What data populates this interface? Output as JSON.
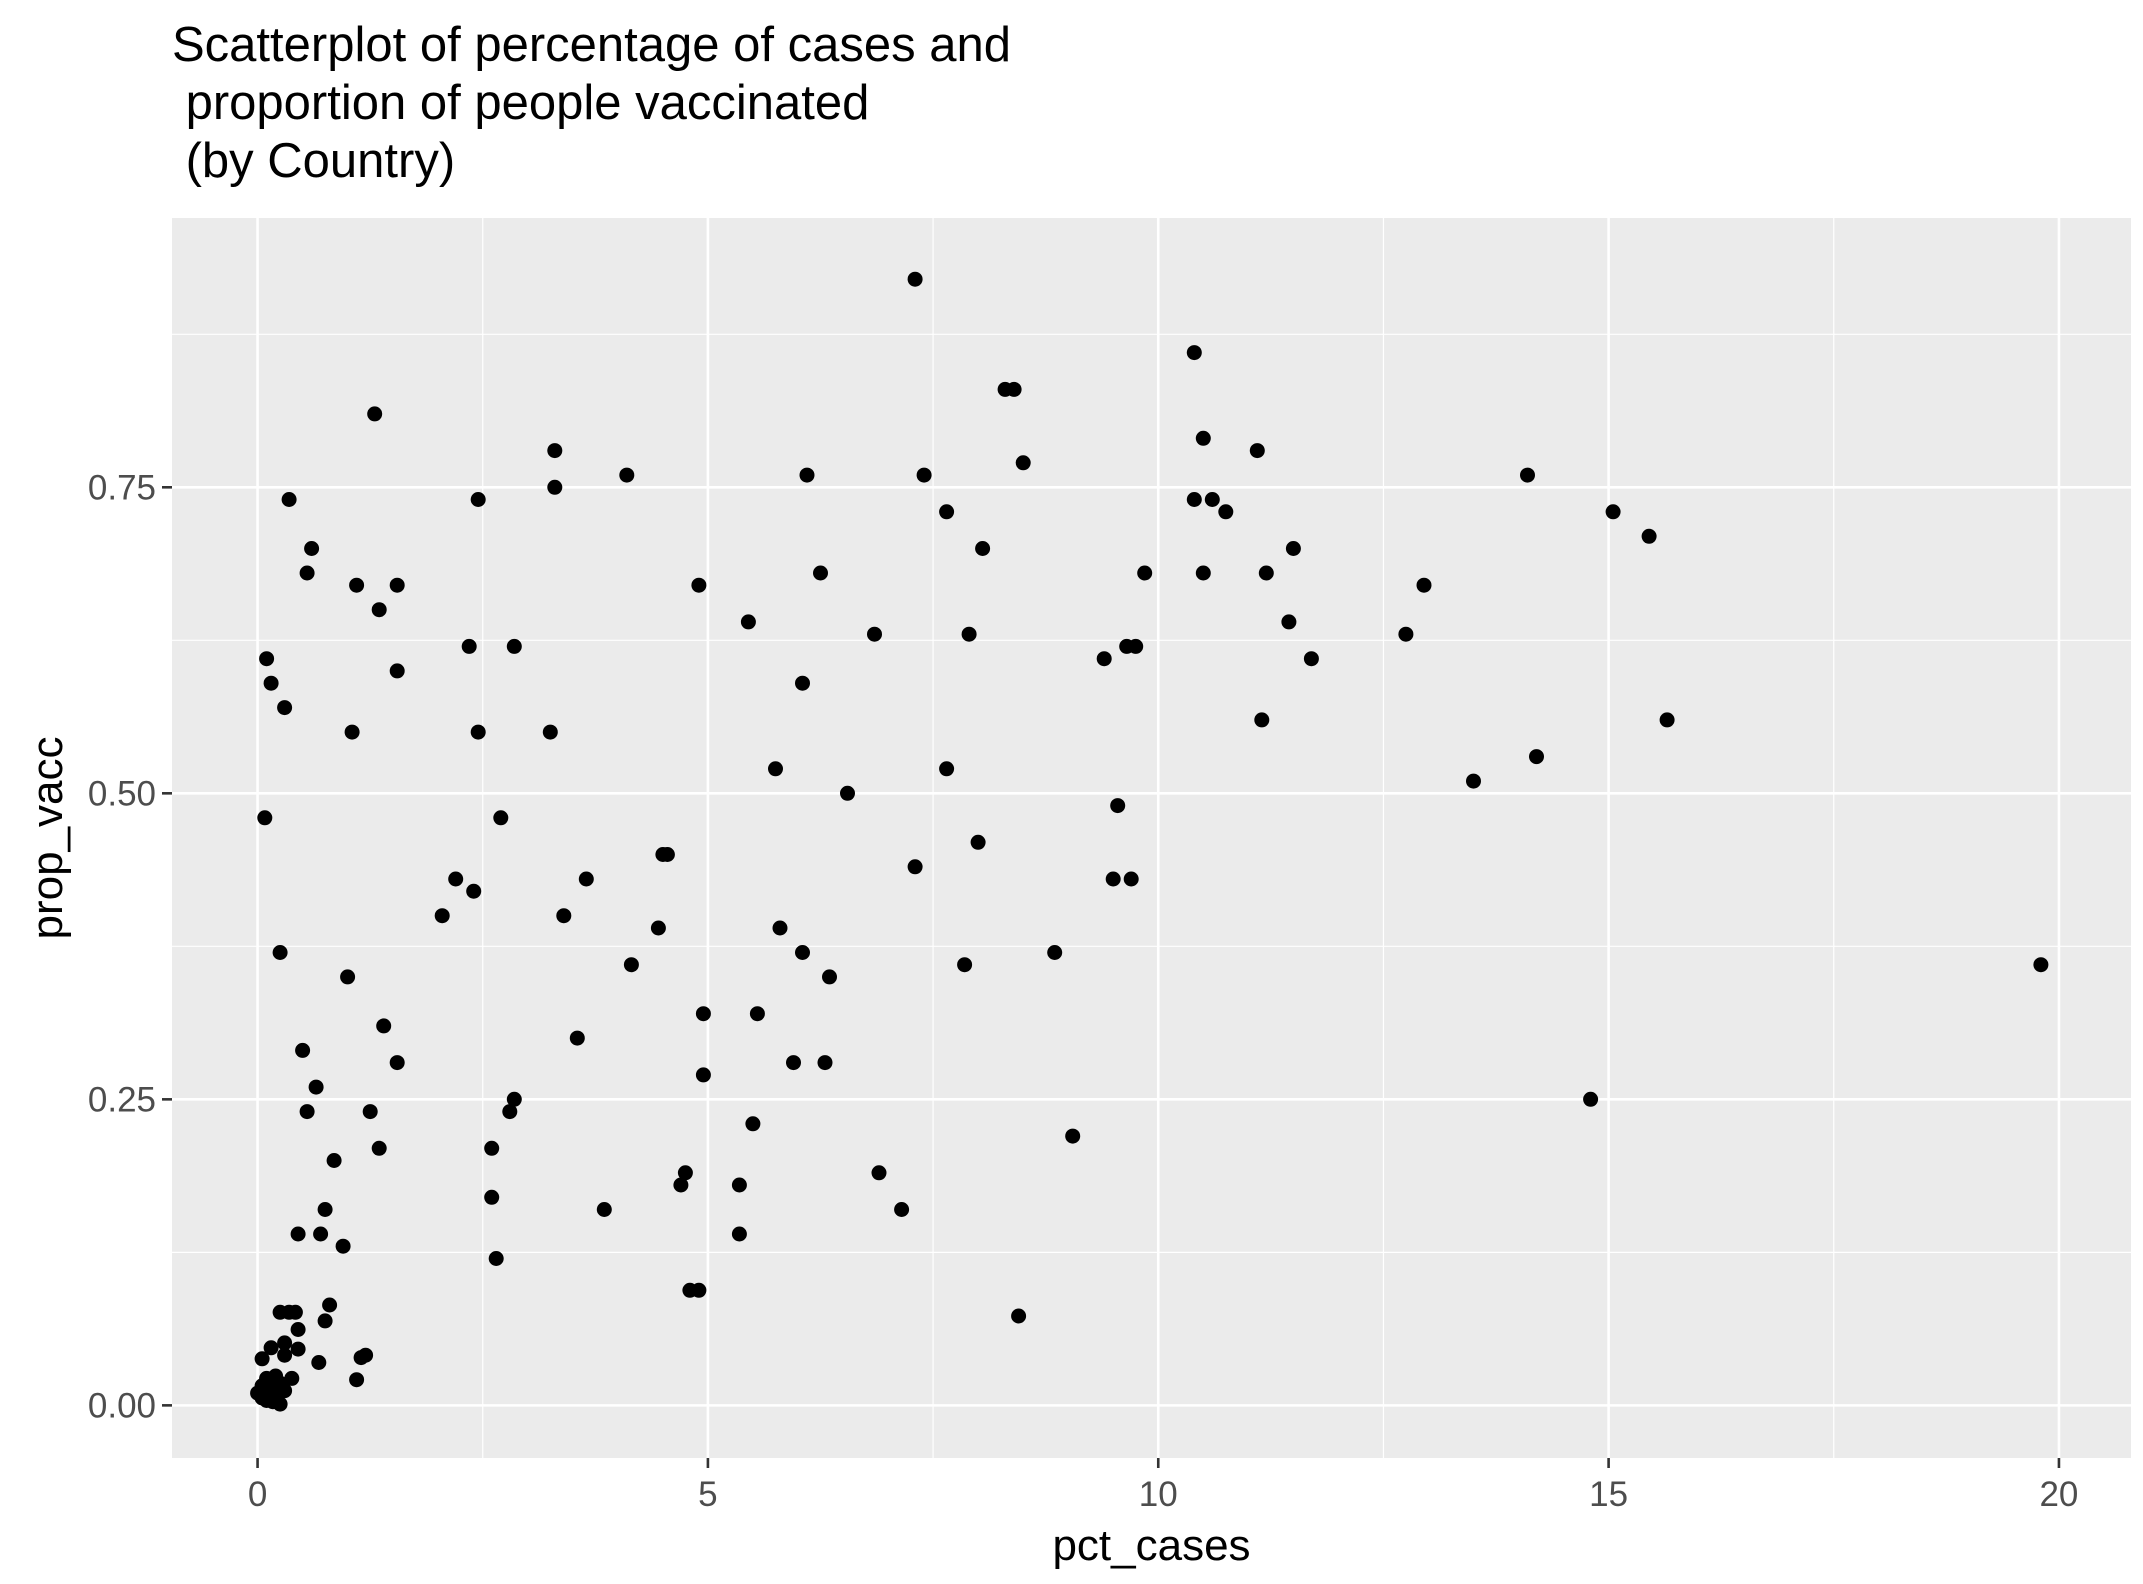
{
  "chart_data": {
    "type": "scatter",
    "title_lines": [
      "Scatterplot of percentage of cases and",
      " proportion of people vaccinated",
      " (by Country)"
    ],
    "xlabel": "pct_cases",
    "ylabel": "prop_vacc",
    "xlim": [
      -0.95,
      20.8
    ],
    "ylim": [
      -0.043,
      0.97
    ],
    "x_ticks": [
      0,
      5,
      10,
      15,
      20
    ],
    "x_tick_labels": [
      "0",
      "5",
      "10",
      "15",
      "20"
    ],
    "y_ticks": [
      0,
      0.25,
      0.5,
      0.75
    ],
    "y_tick_labels": [
      "0.00",
      "0.25",
      "0.50",
      "0.75"
    ],
    "grid": true,
    "panel_background": "#ebebeb",
    "grid_color": "#ffffff",
    "point_color": "#000000",
    "points": [
      [
        7.3,
        0.92
      ],
      [
        10.4,
        0.86
      ],
      [
        8.3,
        0.83
      ],
      [
        8.4,
        0.83
      ],
      [
        1.3,
        0.81
      ],
      [
        10.5,
        0.79
      ],
      [
        3.3,
        0.78
      ],
      [
        11.1,
        0.78
      ],
      [
        8.5,
        0.77
      ],
      [
        4.1,
        0.76
      ],
      [
        6.1,
        0.76
      ],
      [
        7.4,
        0.76
      ],
      [
        14.1,
        0.76
      ],
      [
        3.3,
        0.75
      ],
      [
        0.35,
        0.74
      ],
      [
        2.45,
        0.74
      ],
      [
        10.4,
        0.74
      ],
      [
        10.6,
        0.74
      ],
      [
        7.65,
        0.73
      ],
      [
        10.75,
        0.73
      ],
      [
        15.05,
        0.73
      ],
      [
        15.45,
        0.71
      ],
      [
        0.6,
        0.7
      ],
      [
        8.05,
        0.7
      ],
      [
        11.5,
        0.7
      ],
      [
        0.55,
        0.68
      ],
      [
        6.25,
        0.68
      ],
      [
        9.85,
        0.68
      ],
      [
        10.5,
        0.68
      ],
      [
        11.2,
        0.68
      ],
      [
        1.1,
        0.67
      ],
      [
        1.55,
        0.67
      ],
      [
        4.9,
        0.67
      ],
      [
        12.95,
        0.67
      ],
      [
        1.35,
        0.65
      ],
      [
        5.45,
        0.64
      ],
      [
        11.45,
        0.64
      ],
      [
        6.85,
        0.63
      ],
      [
        7.9,
        0.63
      ],
      [
        12.75,
        0.63
      ],
      [
        2.35,
        0.62
      ],
      [
        2.85,
        0.62
      ],
      [
        9.65,
        0.62
      ],
      [
        9.75,
        0.62
      ],
      [
        0.1,
        0.61
      ],
      [
        9.4,
        0.61
      ],
      [
        11.7,
        0.61
      ],
      [
        1.55,
        0.6
      ],
      [
        0.15,
        0.59
      ],
      [
        6.05,
        0.59
      ],
      [
        0.3,
        0.57
      ],
      [
        11.15,
        0.56
      ],
      [
        15.65,
        0.56
      ],
      [
        1.05,
        0.55
      ],
      [
        2.45,
        0.55
      ],
      [
        3.25,
        0.55
      ],
      [
        14.2,
        0.53
      ],
      [
        5.75,
        0.52
      ],
      [
        7.65,
        0.52
      ],
      [
        13.5,
        0.51
      ],
      [
        6.55,
        0.5
      ],
      [
        9.55,
        0.49
      ],
      [
        0.08,
        0.48
      ],
      [
        2.7,
        0.48
      ],
      [
        8.0,
        0.46
      ],
      [
        4.5,
        0.45
      ],
      [
        4.55,
        0.45
      ],
      [
        7.3,
        0.44
      ],
      [
        2.2,
        0.43
      ],
      [
        3.65,
        0.43
      ],
      [
        9.5,
        0.43
      ],
      [
        9.7,
        0.43
      ],
      [
        2.4,
        0.42
      ],
      [
        2.05,
        0.4
      ],
      [
        3.4,
        0.4
      ],
      [
        4.45,
        0.39
      ],
      [
        5.8,
        0.39
      ],
      [
        0.25,
        0.37
      ],
      [
        6.05,
        0.37
      ],
      [
        8.85,
        0.37
      ],
      [
        4.15,
        0.36
      ],
      [
        7.85,
        0.36
      ],
      [
        19.8,
        0.36
      ],
      [
        1.0,
        0.35
      ],
      [
        6.35,
        0.35
      ],
      [
        4.95,
        0.32
      ],
      [
        5.55,
        0.32
      ],
      [
        1.4,
        0.31
      ],
      [
        3.55,
        0.3
      ],
      [
        0.5,
        0.29
      ],
      [
        1.55,
        0.28
      ],
      [
        5.95,
        0.28
      ],
      [
        6.3,
        0.28
      ],
      [
        4.95,
        0.27
      ],
      [
        0.65,
        0.26
      ],
      [
        2.85,
        0.25
      ],
      [
        14.8,
        0.25
      ],
      [
        0.55,
        0.24
      ],
      [
        1.25,
        0.24
      ],
      [
        2.8,
        0.24
      ],
      [
        5.5,
        0.23
      ],
      [
        9.05,
        0.22
      ],
      [
        1.35,
        0.21
      ],
      [
        2.6,
        0.21
      ],
      [
        0.85,
        0.2
      ],
      [
        4.75,
        0.19
      ],
      [
        6.9,
        0.19
      ],
      [
        4.7,
        0.18
      ],
      [
        5.35,
        0.18
      ],
      [
        2.6,
        0.17
      ],
      [
        0.75,
        0.16
      ],
      [
        3.85,
        0.16
      ],
      [
        7.15,
        0.16
      ],
      [
        0.45,
        0.14
      ],
      [
        0.7,
        0.14
      ],
      [
        5.35,
        0.14
      ],
      [
        0.95,
        0.13
      ],
      [
        2.65,
        0.12
      ],
      [
        4.8,
        0.094
      ],
      [
        4.9,
        0.094
      ],
      [
        0.8,
        0.082
      ],
      [
        0.25,
        0.076
      ],
      [
        0.35,
        0.076
      ],
      [
        0.42,
        0.076
      ],
      [
        8.45,
        0.073
      ],
      [
        0.75,
        0.069
      ],
      [
        0.45,
        0.062
      ],
      [
        0.3,
        0.051
      ],
      [
        0.15,
        0.047
      ],
      [
        0.45,
        0.046
      ],
      [
        0.3,
        0.041
      ],
      [
        1.2,
        0.041
      ],
      [
        1.15,
        0.039
      ],
      [
        0.05,
        0.038
      ],
      [
        0.68,
        0.035
      ],
      [
        0.2,
        0.024
      ],
      [
        0.1,
        0.022
      ],
      [
        0.38,
        0.022
      ],
      [
        1.1,
        0.021
      ],
      [
        0.25,
        0.018
      ],
      [
        0.05,
        0.016
      ],
      [
        0.15,
        0.014
      ],
      [
        0.3,
        0.012
      ],
      [
        0.0,
        0.01
      ],
      [
        0.12,
        0.01
      ],
      [
        0.22,
        0.008
      ],
      [
        0.05,
        0.006
      ],
      [
        0.1,
        0.004
      ],
      [
        0.17,
        0.003
      ],
      [
        0.25,
        0.001
      ]
    ]
  }
}
